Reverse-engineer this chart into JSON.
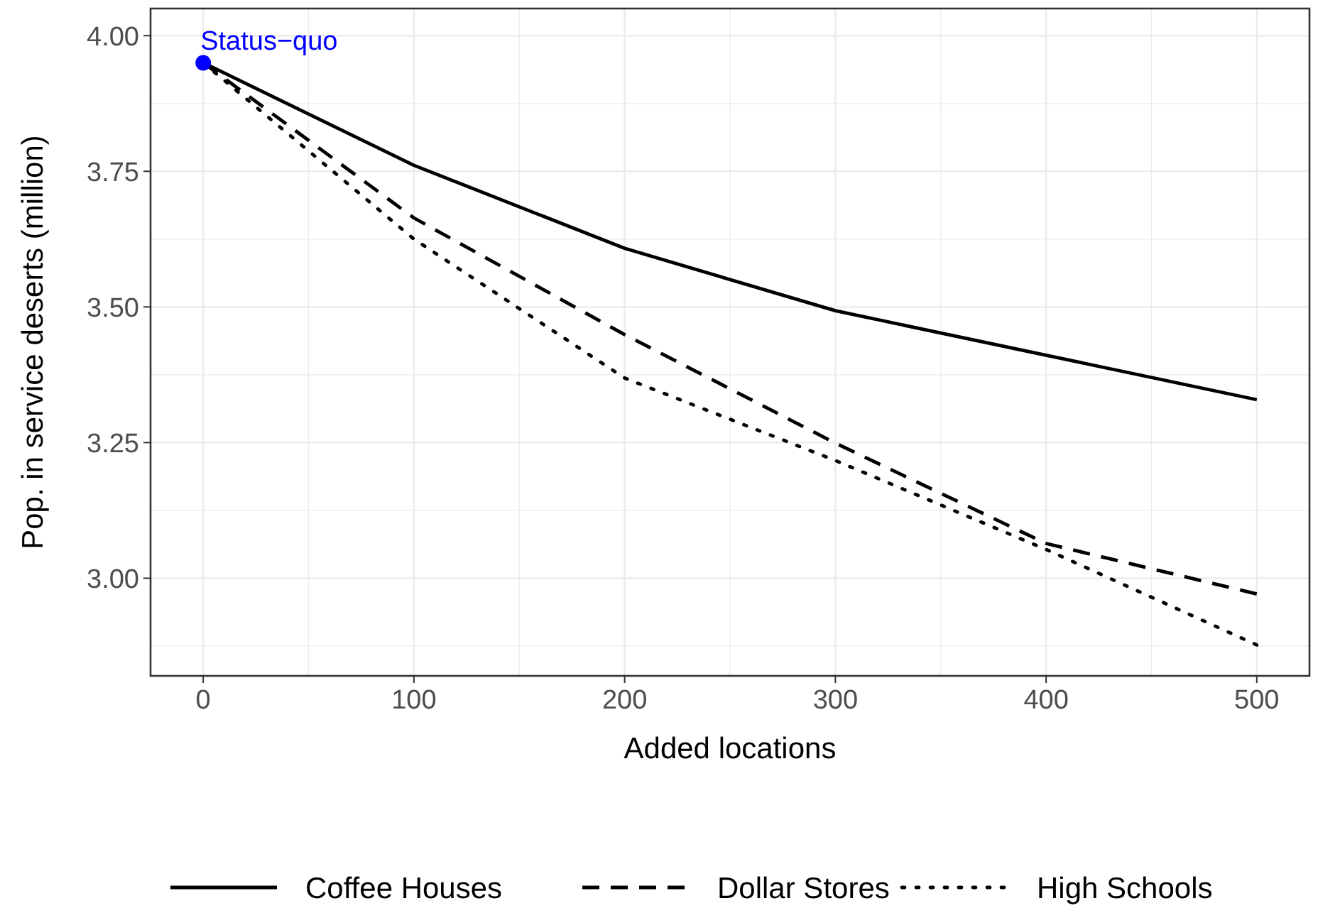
{
  "chart_data": {
    "type": "line",
    "xlabel": "Added locations",
    "ylabel": "Pop. in service deserts (million)",
    "x": [
      0,
      100,
      200,
      300,
      400,
      500
    ],
    "xlim": [
      -25,
      525
    ],
    "xticks": [
      0,
      100,
      200,
      300,
      400,
      500
    ],
    "ylim": [
      2.82,
      4.05
    ],
    "yticks": [
      {
        "value": 3,
        "label": "3.00"
      },
      {
        "value": 3.25,
        "label": "3.25"
      },
      {
        "value": 3.5,
        "label": "3.50"
      },
      {
        "value": 3.75,
        "label": "3.75"
      },
      {
        "value": 4,
        "label": "4.00"
      }
    ],
    "grid": true,
    "legend": "bottom",
    "series": [
      {
        "name": "Coffee Houses",
        "color": "#000000",
        "line_style": "solid",
        "values": [
          3.95,
          3.761,
          3.608,
          3.493,
          3.411,
          3.329
        ]
      },
      {
        "name": "Dollar Stores",
        "color": "#000000",
        "line_style": "dashed",
        "values": [
          3.95,
          3.664,
          3.449,
          3.249,
          3.064,
          2.971
        ]
      },
      {
        "name": "High Schools",
        "color": "#000000",
        "line_style": "dotted",
        "values": [
          3.95,
          3.625,
          3.369,
          3.217,
          3.053,
          2.877
        ]
      },
      {
        "type": "scatter",
        "color": "#0000ff",
        "marker": "circle",
        "x": [
          0
        ],
        "values": [
          3.95
        ]
      }
    ],
    "annotations": [
      {
        "text": "Status−quo",
        "x": 0,
        "y": 3.95
      }
    ]
  }
}
